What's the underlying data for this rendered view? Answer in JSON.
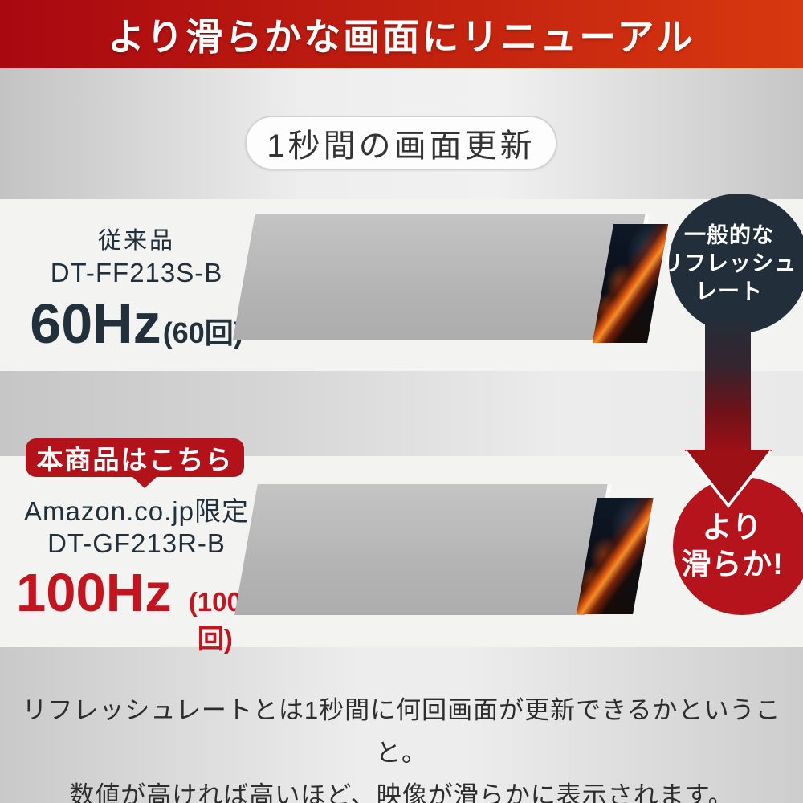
{
  "banner": {
    "title": "より滑らかな画面にリニューアル"
  },
  "pill": {
    "label": "1秒間の画面更新"
  },
  "row1": {
    "category": "従来品",
    "model": "DT-FF213S-B",
    "rate": "60Hz",
    "times": "(60回)",
    "frame_count": 10,
    "callout": [
      "一般的な",
      "リフレッシュ",
      "レート"
    ]
  },
  "row2": {
    "badge": "本商品はこちら",
    "edition": "Amazon.co.jp限定",
    "model": "DT-GF213R-B",
    "rate": "100Hz",
    "times": "(100回)",
    "frame_count": 27,
    "callout": [
      "より",
      "滑らか!"
    ]
  },
  "footer": {
    "line1": "リフレッシュレートとは1秒間に何回画面が更新できるかということ。",
    "line2": "数値が高ければ高いほど、映像が滑らかに表示されます。"
  },
  "colors": {
    "banner_gradient_left": "#a90811",
    "banner_gradient_right": "#d8380f",
    "navy": "#222f3b",
    "badge_red": "#b3121a",
    "circle_red": "#b6141c",
    "rate_red": "#c3151f",
    "rate_navy": "#22303c",
    "frame_gray": "#b8b8b8",
    "band_light": "#f3f3f2"
  }
}
